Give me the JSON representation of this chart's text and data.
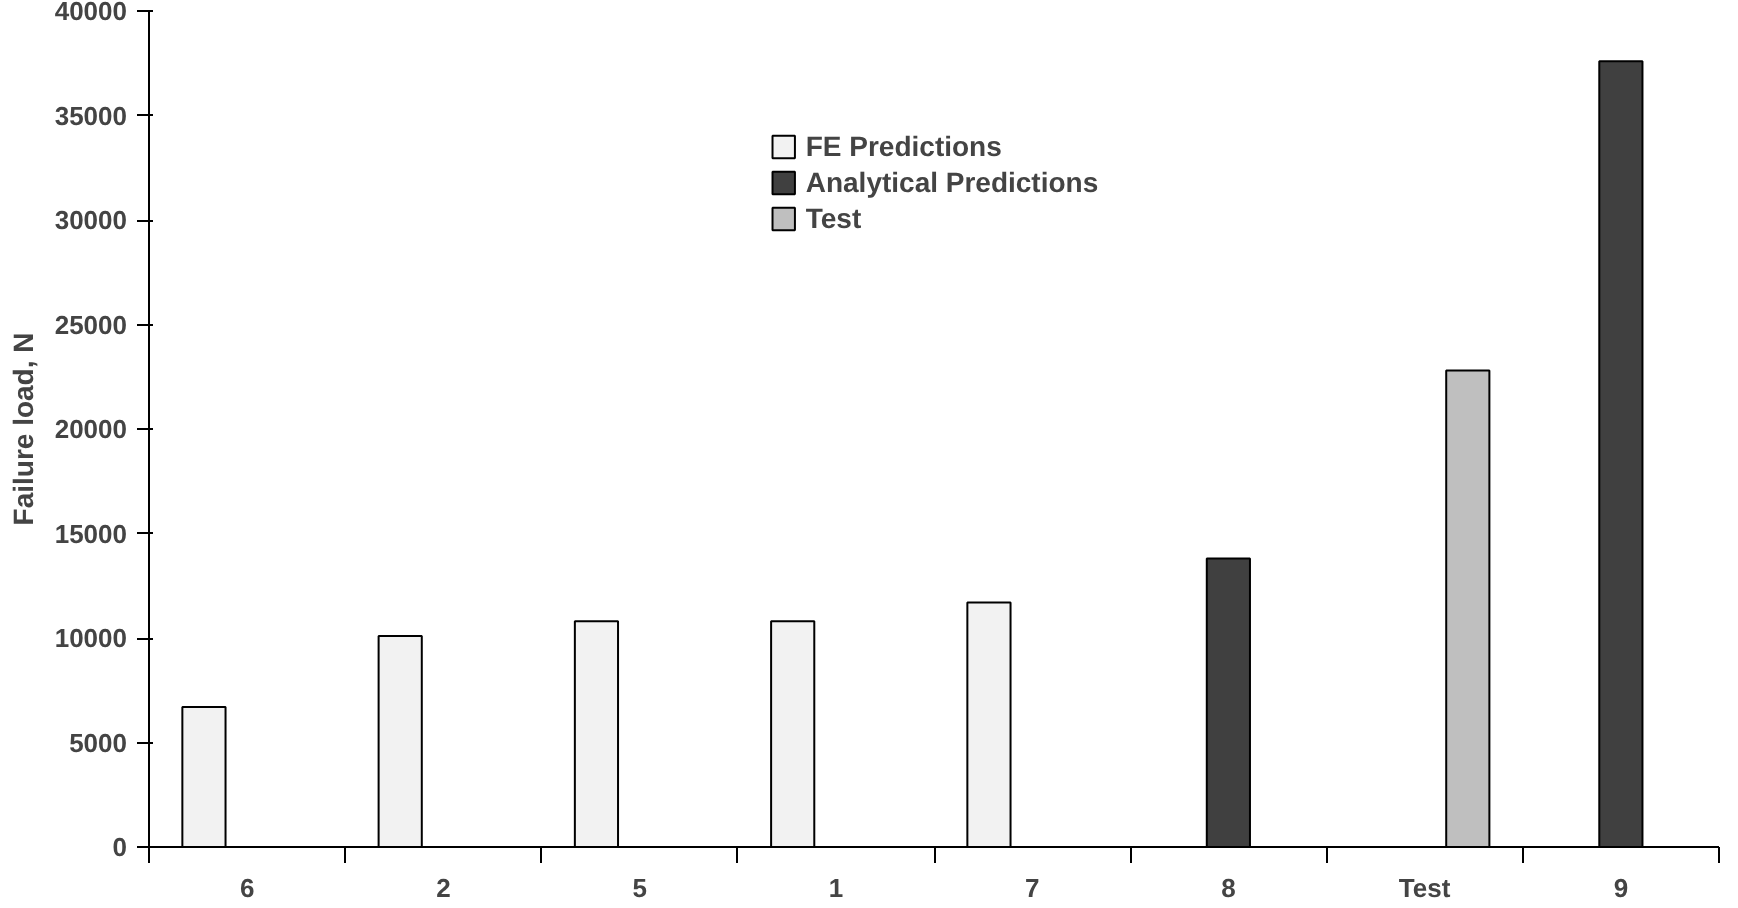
{
  "chart_data": {
    "type": "bar",
    "ylabel": "Failure load, N",
    "categories": [
      "6",
      "2",
      "5",
      "1",
      "7",
      "8",
      "Test",
      "9"
    ],
    "series": [
      {
        "name": "FE Predictions",
        "color": "#f2f2f2",
        "values": [
          6700,
          10100,
          10800,
          10800,
          11700,
          null,
          null,
          null
        ]
      },
      {
        "name": "Analytical Predictions",
        "color": "#404040",
        "values": [
          null,
          null,
          null,
          null,
          null,
          13800,
          null,
          37600
        ]
      },
      {
        "name": "Test",
        "color": "#bfbfbf",
        "values": [
          null,
          null,
          null,
          null,
          null,
          null,
          22800,
          null
        ]
      }
    ],
    "ylim": [
      0,
      40000
    ],
    "yticks": [
      0,
      5000,
      10000,
      15000,
      20000,
      25000,
      30000,
      35000,
      40000
    ],
    "grid": false,
    "legend": "top"
  }
}
